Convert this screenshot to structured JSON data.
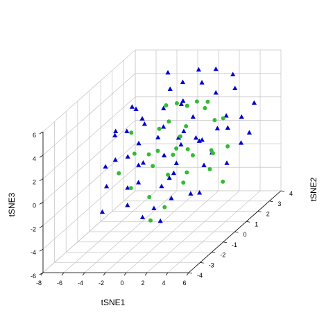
{
  "chart_data": {
    "type": "scatter",
    "projection": "3d",
    "xlabel": "tSNE1",
    "ylabel": "tSNE2",
    "zlabel": "tSNE3",
    "xlim": [
      -8,
      6
    ],
    "ylim": [
      -4,
      4
    ],
    "zlim": [
      -6,
      6
    ],
    "x_ticks": [
      "-8",
      "-6",
      "-4",
      "-2",
      "0",
      "2",
      "4",
      "6"
    ],
    "y_ticks": [
      "-4",
      "-3",
      "-2",
      "-1",
      "0",
      "1",
      "2",
      "3",
      "4"
    ],
    "z_ticks": [
      "-6",
      "-4",
      "-2",
      "0",
      "2",
      "4",
      "6"
    ],
    "grid": true,
    "series": [
      {
        "marker": "triangle",
        "color": "#0000CD",
        "points": [
          [
            -4.2,
            3.4,
            4.6
          ],
          [
            -0.8,
            3.0,
            5.2
          ],
          [
            1.6,
            3.8,
            4.1
          ],
          [
            -3.1,
            2.6,
            3.9
          ],
          [
            0.4,
            2.2,
            4.8
          ],
          [
            2.8,
            2.9,
            3.7
          ],
          [
            -5.6,
            1.9,
            2.8
          ],
          [
            -2.4,
            1.4,
            3.3
          ],
          [
            -0.2,
            1.1,
            4.2
          ],
          [
            1.1,
            0.8,
            3.1
          ],
          [
            3.4,
            1.6,
            2.5
          ],
          [
            5.2,
            2.4,
            2.9
          ],
          [
            -6.3,
            0.7,
            1.6
          ],
          [
            -4.6,
            0.2,
            2.4
          ],
          [
            -2.9,
            -0.3,
            1.8
          ],
          [
            -1.3,
            0.4,
            2.6
          ],
          [
            0.7,
            -0.1,
            2.1
          ],
          [
            2.3,
            0.5,
            1.4
          ],
          [
            4.1,
            1.1,
            1.9
          ],
          [
            5.6,
            0.9,
            0.8
          ],
          [
            -5.1,
            -1.2,
            0.6
          ],
          [
            -3.4,
            -0.8,
            1.1
          ],
          [
            -1.7,
            -1.4,
            0.9
          ],
          [
            0.2,
            -0.9,
            1.3
          ],
          [
            1.9,
            -1.6,
            0.4
          ],
          [
            3.7,
            -0.6,
            0.2
          ],
          [
            -4.0,
            -2.1,
            -0.3
          ],
          [
            -2.2,
            -1.9,
            -0.6
          ],
          [
            -0.6,
            -2.4,
            0.3
          ],
          [
            1.4,
            -2.2,
            -0.2
          ],
          [
            3.0,
            -2.8,
            -0.7
          ],
          [
            4.6,
            -1.8,
            -1.1
          ],
          [
            -3.3,
            -3.1,
            -1.6
          ],
          [
            -1.1,
            -2.9,
            -1.2
          ],
          [
            0.9,
            -3.4,
            -1.8
          ],
          [
            2.5,
            -3.3,
            -2.2
          ],
          [
            -6.0,
            2.8,
            1.2
          ],
          [
            -2.8,
            3.3,
            2.0
          ],
          [
            0.3,
            3.5,
            2.8
          ],
          [
            3.1,
            3.2,
            1.0
          ],
          [
            -1.5,
            2.1,
            -0.4
          ],
          [
            1.7,
            1.9,
            -0.9
          ],
          [
            4.4,
            2.7,
            0.1
          ],
          [
            -5.2,
            1.2,
            3.6
          ],
          [
            -0.4,
            0.1,
            -1.5
          ],
          [
            2.2,
            -0.4,
            -2.4
          ],
          [
            -3.8,
            0.9,
            -0.9
          ],
          [
            0.6,
            1.5,
            0.7
          ],
          [
            -2.0,
            2.7,
            4.4
          ],
          [
            3.8,
            -1.1,
            2.7
          ],
          [
            -4.9,
            -0.5,
            3.0
          ],
          [
            1.3,
            2.6,
            5.6
          ],
          [
            -1.9,
            -0.7,
            3.8
          ],
          [
            2.6,
            -2.0,
            1.6
          ],
          [
            -0.9,
            1.8,
            1.0
          ],
          [
            4.9,
            0.3,
            -0.4
          ],
          [
            -3.6,
            2.0,
            0.3
          ],
          [
            0.0,
            -1.6,
            -2.6
          ],
          [
            -2.6,
            -2.6,
            2.4
          ],
          [
            1.0,
            3.0,
            0.2
          ]
        ]
      },
      {
        "marker": "circle",
        "color": "#33BB33",
        "points": [
          [
            -2.6,
            1.8,
            3.2
          ],
          [
            -0.9,
            1.2,
            3.9
          ],
          [
            0.8,
            2.1,
            2.7
          ],
          [
            2.4,
            1.5,
            2.2
          ],
          [
            -1.6,
            0.3,
            2.5
          ],
          [
            0.1,
            0.6,
            1.6
          ],
          [
            1.7,
            -0.2,
            1.2
          ],
          [
            3.3,
            0.4,
            0.6
          ],
          [
            -3.2,
            -0.4,
            1.0
          ],
          [
            -1.0,
            -0.8,
            0.3
          ],
          [
            0.9,
            -1.2,
            -0.1
          ],
          [
            2.6,
            -1.4,
            -0.6
          ],
          [
            -2.1,
            -1.7,
            -0.8
          ],
          [
            0.0,
            -2.0,
            -1.3
          ],
          [
            1.8,
            -2.3,
            -1.9
          ],
          [
            -4.5,
            0.5,
            2.0
          ],
          [
            4.2,
            1.0,
            0.4
          ],
          [
            -0.3,
            2.4,
            3.0
          ],
          [
            1.2,
            0.1,
            2.9
          ],
          [
            -1.4,
            1.6,
            -0.3
          ],
          [
            2.0,
            2.6,
            1.4
          ],
          [
            5.4,
            -0.5,
            -1.3
          ],
          [
            -3.0,
            2.4,
            1.3
          ],
          [
            0.5,
            -0.4,
            0.9
          ],
          [
            3.6,
            -2.0,
            0.8
          ],
          [
            -0.6,
            -1.5,
            1.9
          ],
          [
            1.4,
            1.8,
            3.5
          ],
          [
            -2.4,
            0.9,
            0.1
          ],
          [
            2.9,
            0.9,
            -0.1
          ],
          [
            -1.8,
            2.9,
            2.2
          ],
          [
            0.3,
            1.5,
            -0.8
          ],
          [
            4.7,
            -1.0,
            0.2
          ],
          [
            -3.6,
            -1.4,
            0.2
          ],
          [
            1.0,
            -2.8,
            -2.6
          ]
        ]
      }
    ]
  }
}
